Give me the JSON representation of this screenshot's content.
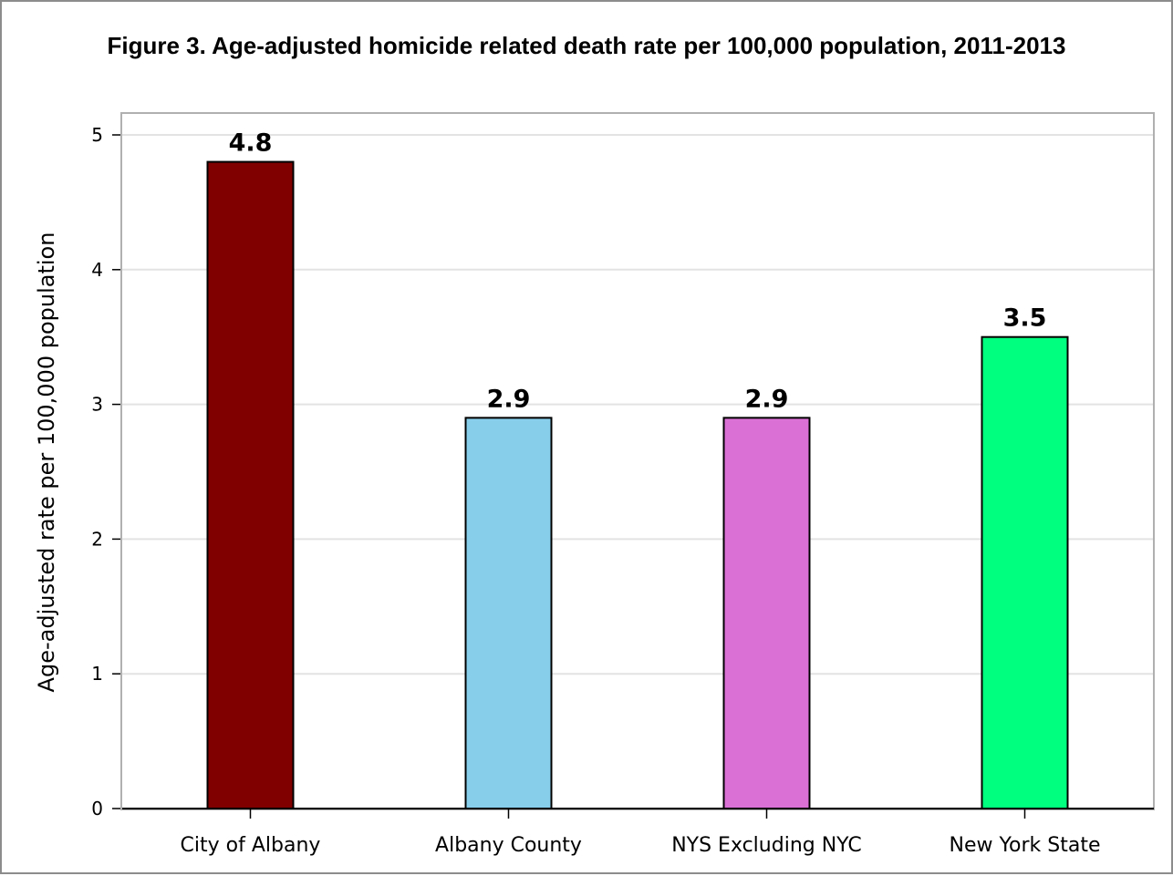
{
  "chart_data": {
    "type": "bar",
    "title": "Figure 3. Age-adjusted homicide related death rate per 100,000 population, 2011-2013",
    "xlabel": "",
    "ylabel": "Age-adjusted rate per 100,000 population",
    "categories": [
      "City of Albany",
      "Albany County",
      "NYS Excluding NYC",
      "New York State"
    ],
    "values": [
      4.8,
      2.9,
      2.9,
      3.5
    ],
    "data_labels": [
      "4.8",
      "2.9",
      "2.9",
      "3.5"
    ],
    "colors": [
      "#800000",
      "#87CEEB",
      "#DA70D6",
      "#00FF7F"
    ],
    "ylim": [
      0,
      5
    ],
    "yticks": [
      0,
      1,
      2,
      3,
      4,
      5
    ],
    "grid": true,
    "legend": "none"
  }
}
